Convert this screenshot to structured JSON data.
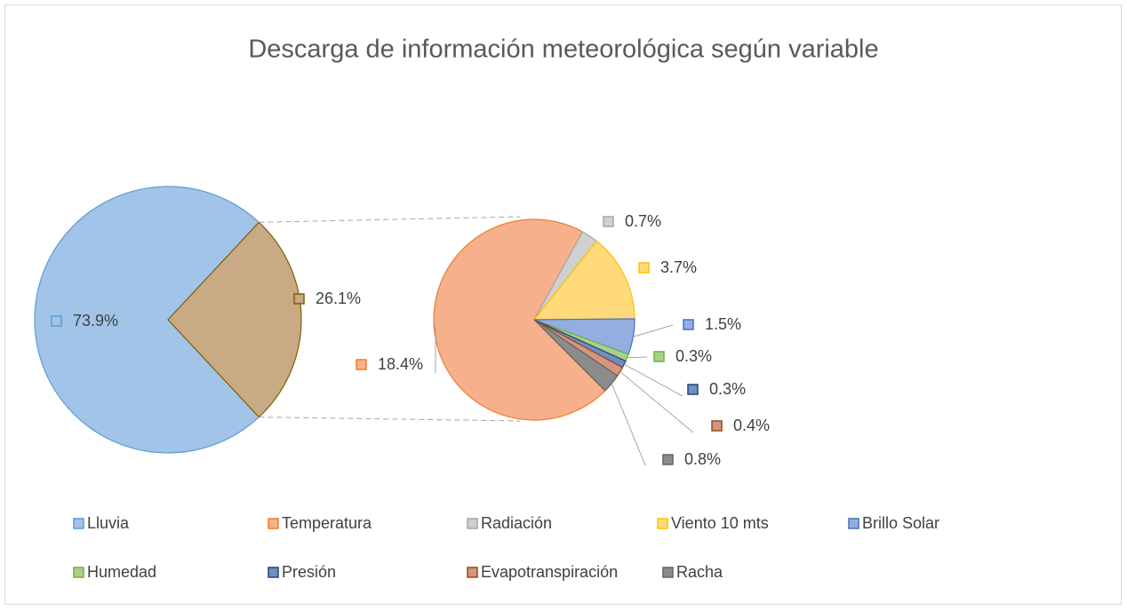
{
  "chart_data": {
    "type": "pie-of-pie",
    "title": "Descarga de información meteorológica según variable",
    "categories": [
      "Lluvia",
      "Temperatura",
      "Radiación",
      "Viento 10 mts",
      "Brillo Solar",
      "Humedad",
      "Presión",
      "Evapotranspiración",
      "Racha"
    ],
    "values": [
      73.9,
      18.4,
      0.7,
      3.7,
      1.5,
      0.3,
      0.3,
      0.4,
      0.8
    ],
    "value_labels": [
      "73.9%",
      "18.4%",
      "0.7%",
      "3.7%",
      "1.5%",
      "0.3%",
      "0.3%",
      "0.4%",
      "0.8%"
    ],
    "colors": [
      "#a2c4e8",
      "#f7b08c",
      "#d0d0d0",
      "#ffd97a",
      "#94aee0",
      "#a9d18e",
      "#6f8fbf",
      "#d39684",
      "#8c8c8c"
    ],
    "other_value": 26.1,
    "other_value_label": "26.1%",
    "other_color": "#c8aa84"
  }
}
